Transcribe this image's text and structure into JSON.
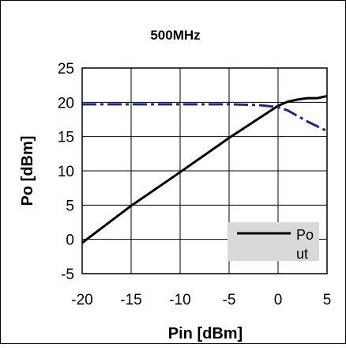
{
  "chart_data": {
    "type": "line",
    "title": "500MHz",
    "xlabel": "Pin [dBm]",
    "ylabel": "Po [dBm]",
    "xlim": [
      -20,
      5
    ],
    "ylim": [
      -5,
      25
    ],
    "xticks": [
      "-20",
      "-15",
      "-10",
      "-5",
      "0",
      "5"
    ],
    "yticks": [
      "25",
      "20",
      "15",
      "10",
      "5",
      "0",
      "-5"
    ],
    "grid": true,
    "legend_position": "bottom-right",
    "legend_label_line1": "Po",
    "legend_label_line2": "ut",
    "series": [
      {
        "name": "Pout",
        "color": "#000000",
        "style": "solid",
        "x": [
          -20,
          -15,
          -10,
          -5,
          0,
          1,
          2,
          3,
          4,
          5
        ],
        "y": [
          -0.5,
          4.9,
          9.8,
          14.8,
          19.5,
          20.1,
          20.4,
          20.6,
          20.6,
          20.9
        ]
      },
      {
        "color": "#1a2a8c",
        "style": "dash-dot",
        "x": [
          -20,
          -15,
          -10,
          -5,
          -2,
          0,
          1,
          2,
          3,
          4,
          5
        ],
        "y": [
          19.7,
          19.7,
          19.7,
          19.7,
          19.6,
          19.3,
          18.8,
          18.0,
          17.2,
          16.5,
          15.8
        ]
      }
    ]
  }
}
